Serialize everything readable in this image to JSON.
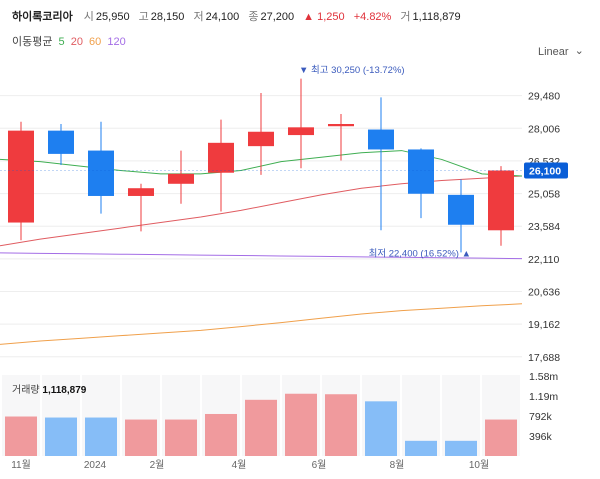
{
  "header": {
    "name": "하이록코리아",
    "open_label": "시",
    "open": "25,950",
    "high_label": "고",
    "high": "28,150",
    "low_label": "저",
    "low": "24,100",
    "close_label": "종",
    "close": "27,200",
    "change_arrow": "▲",
    "change": "1,250",
    "change_pct": "+4.82%",
    "volume_label": "거",
    "volume": "1,118,879"
  },
  "ma_legend": {
    "label": "이동평균",
    "items": [
      {
        "period": "5",
        "color": "#3fae52"
      },
      {
        "period": "20",
        "color": "#e05c61"
      },
      {
        "period": "60",
        "color": "#f0a04b"
      },
      {
        "period": "120",
        "color": "#a46ee6"
      }
    ]
  },
  "scale_mode": "Linear",
  "colors": {
    "up": "#ef3b3e",
    "down": "#1e7ff0",
    "vol_up": "#f09a9d",
    "vol_down": "#86bdf7",
    "current": "#0a5ed7"
  },
  "chart_data": {
    "type": "candlestick",
    "price_axis": {
      "ylim": [
        17000,
        31000
      ],
      "ticks": [
        29480,
        28006,
        26532,
        25058,
        23584,
        22110,
        20636,
        19162,
        17688
      ],
      "tick_labels": [
        "29,480",
        "28,006",
        "26,532",
        "25,058",
        "23,584",
        "22,110",
        "20,636",
        "19,162",
        "17,688"
      ]
    },
    "x_labels": [
      {
        "label": "11월",
        "index": 0
      },
      {
        "label": "2024",
        "index": 1.85
      },
      {
        "label": "2월",
        "index": 3.4
      },
      {
        "label": "4월",
        "index": 5.45
      },
      {
        "label": "6월",
        "index": 7.45
      },
      {
        "label": "8월",
        "index": 9.4
      },
      {
        "label": "10월",
        "index": 11.45
      }
    ],
    "candles": [
      {
        "open": 23750,
        "high": 28300,
        "low": 22950,
        "close": 27900
      },
      {
        "open": 27900,
        "high": 28200,
        "low": 26350,
        "close": 26850
      },
      {
        "open": 27000,
        "high": 28300,
        "low": 24150,
        "close": 24950
      },
      {
        "open": 24950,
        "high": 25500,
        "low": 23350,
        "close": 25300
      },
      {
        "open": 25500,
        "high": 27000,
        "low": 24600,
        "close": 25950
      },
      {
        "open": 26000,
        "high": 28400,
        "low": 24250,
        "close": 27350
      },
      {
        "open": 27200,
        "high": 29600,
        "low": 25900,
        "close": 27850
      },
      {
        "open": 27700,
        "high": 30250,
        "low": 26200,
        "close": 28050
      },
      {
        "open": 28100,
        "high": 28650,
        "low": 26550,
        "close": 28200
      },
      {
        "open": 27950,
        "high": 29400,
        "low": 23400,
        "close": 27050
      },
      {
        "open": 27050,
        "high": 27100,
        "low": 23950,
        "close": 25050
      },
      {
        "open": 25000,
        "high": 25700,
        "low": 22400,
        "close": 23650
      },
      {
        "open": 23400,
        "high": 26300,
        "low": 22700,
        "close": 26100
      }
    ],
    "ma5": [
      26600,
      26500,
      26300,
      26100,
      25950,
      25950,
      26100,
      26500,
      26700,
      26900,
      27000,
      26600,
      25950,
      25850
    ],
    "ma20": [
      22700,
      23000,
      23250,
      23500,
      23750,
      24000,
      24300,
      24650,
      25000,
      25300,
      25500,
      25650,
      25750,
      25850
    ],
    "ma60": [
      18250,
      18400,
      18520,
      18640,
      18760,
      18880,
      19050,
      19230,
      19430,
      19620,
      19770,
      19880,
      19990,
      20080
    ],
    "ma120": [
      22380,
      22360,
      22340,
      22320,
      22300,
      22280,
      22260,
      22240,
      22220,
      22200,
      22180,
      22160,
      22140,
      22120
    ],
    "high_marker": {
      "label": "최고",
      "value": "30,250",
      "pct": "(-13.72%)",
      "index": 7
    },
    "low_marker": {
      "label": "최저",
      "value": "22,400",
      "pct": "(16.52%)",
      "index": 11
    },
    "current_price": {
      "value": 26100,
      "label": "26,100"
    },
    "volume": {
      "title": "거래량",
      "total": "1,118,879",
      "values": [
        780000,
        760000,
        760000,
        720000,
        720000,
        830000,
        1110000,
        1230000,
        1220000,
        1080000,
        300000,
        300000,
        720000
      ],
      "ylim": [
        0,
        1600000
      ],
      "ticks": [
        1580000,
        1190000,
        792000,
        396000
      ],
      "tick_labels": [
        "1.58m",
        "1.19m",
        "792k",
        "396k"
      ]
    }
  }
}
